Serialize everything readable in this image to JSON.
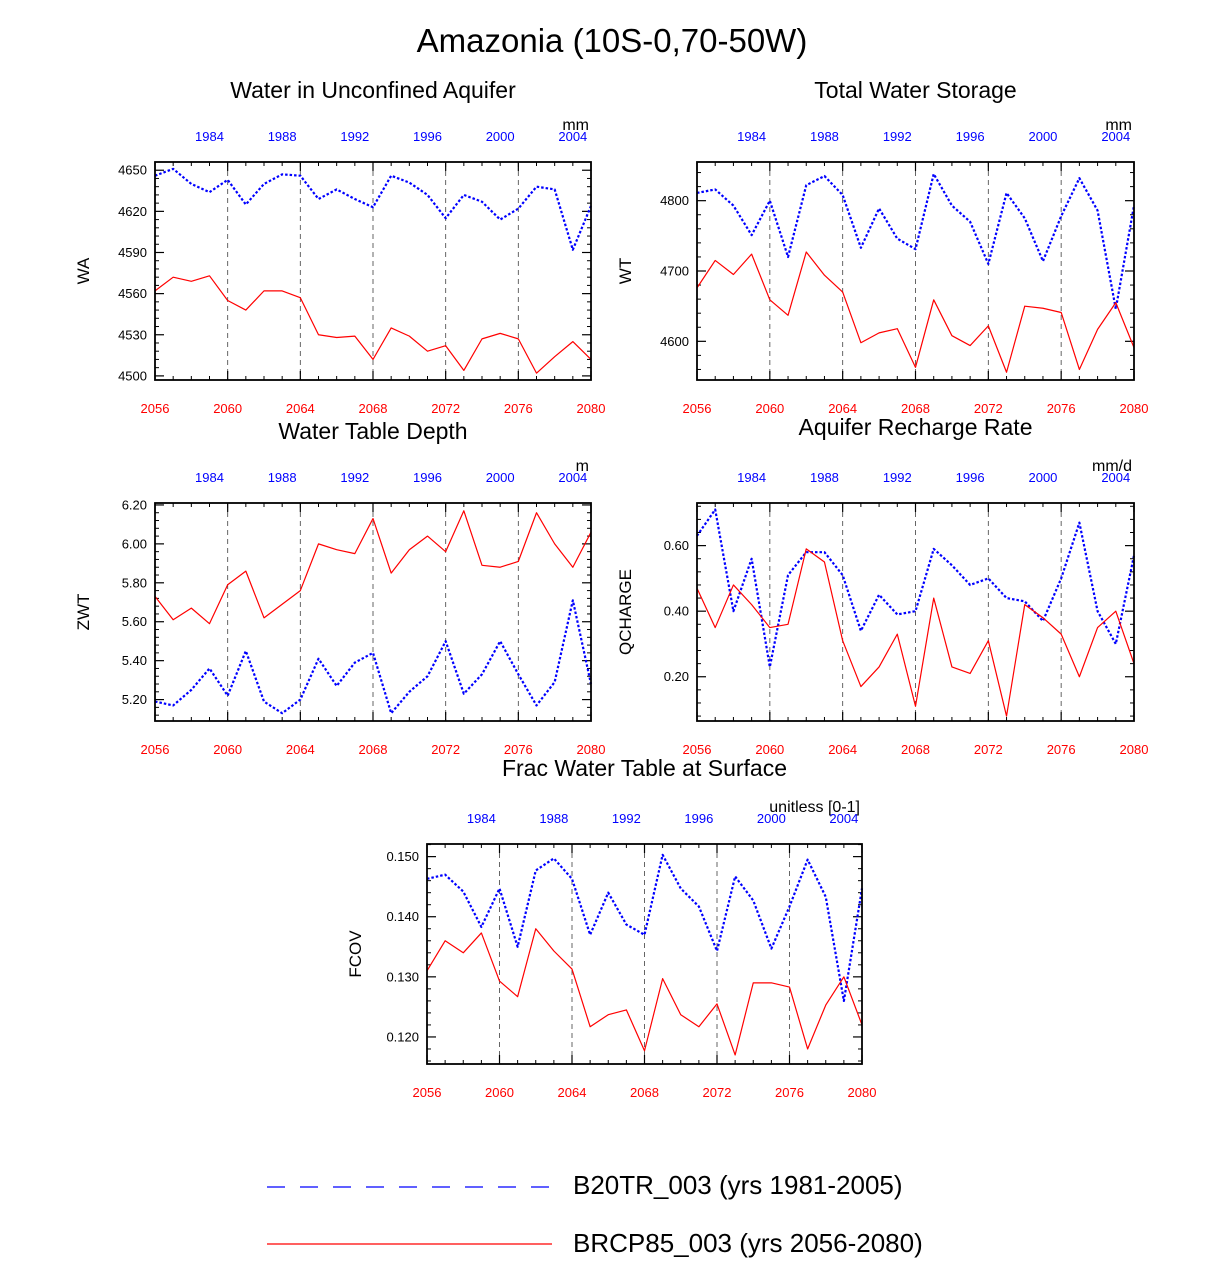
{
  "figure_title": "Amazonia (10S-0,70-50W)",
  "colors": {
    "blue": "#0000ff",
    "red": "#ff0000",
    "axis": "#000000",
    "grid": "#555555"
  },
  "legend": [
    {
      "label": "B20TR_003 (yrs 1981-2005)",
      "color": "#0000ff",
      "style": "dashed"
    },
    {
      "label": "BRCP85_003 (yrs 2056-2080)",
      "color": "#ff0000",
      "style": "solid"
    }
  ],
  "chart_data": [
    {
      "type": "line",
      "title": "Water in Unconfined Aquifer",
      "ylabel": "WA",
      "units": "mm",
      "ylim": [
        4497,
        4656
      ],
      "yticks": [
        4500,
        4530,
        4560,
        4590,
        4620,
        4650
      ],
      "ytick_labels": [
        "4500",
        "4530",
        "4560",
        "4590",
        "4620",
        "4650"
      ],
      "x_bottom": {
        "range": [
          2056,
          2080
        ],
        "ticks": [
          2056,
          2060,
          2064,
          2068,
          2072,
          2076,
          2080
        ]
      },
      "x_top": {
        "ticks": [
          1984,
          1988,
          1992,
          1996,
          2000,
          2004
        ]
      },
      "vlines": [
        2060,
        2064,
        2068,
        2072,
        2076
      ],
      "series": [
        {
          "name": "B20TR_003",
          "color": "#0000ff",
          "dash": true,
          "values": [
            4646,
            4651,
            4640,
            4634,
            4643,
            4625,
            4640,
            4647,
            4646,
            4629,
            4636,
            4629,
            4623,
            4646,
            4641,
            4632,
            4615,
            4632,
            4627,
            4614,
            4622,
            4638,
            4636,
            4592,
            4624
          ]
        },
        {
          "name": "BRCP85_003",
          "color": "#ff0000",
          "dash": false,
          "values": [
            4562,
            4572,
            4569,
            4573,
            4555,
            4548,
            4562,
            4562,
            4557,
            4530,
            4528,
            4529,
            4512,
            4535,
            4529,
            4518,
            4522,
            4504,
            4527,
            4531,
            4527,
            4502,
            4514,
            4525,
            4512
          ]
        }
      ]
    },
    {
      "type": "line",
      "title": "Total Water Storage",
      "ylabel": "WT",
      "units": "mm",
      "ylim": [
        4545,
        4855
      ],
      "yticks": [
        4600,
        4700,
        4800
      ],
      "ytick_labels": [
        "4600",
        "4700",
        "4800"
      ],
      "x_bottom": {
        "range": [
          2056,
          2080
        ],
        "ticks": [
          2056,
          2060,
          2064,
          2068,
          2072,
          2076,
          2080
        ]
      },
      "x_top": {
        "ticks": [
          1984,
          1988,
          1992,
          1996,
          2000,
          2004
        ]
      },
      "vlines": [
        2060,
        2064,
        2068,
        2072,
        2076
      ],
      "series": [
        {
          "name": "B20TR_003",
          "color": "#0000ff",
          "dash": true,
          "values": [
            4811,
            4816,
            4793,
            4751,
            4800,
            4720,
            4822,
            4835,
            4808,
            4733,
            4789,
            4746,
            4731,
            4838,
            4793,
            4770,
            4710,
            4811,
            4775,
            4714,
            4778,
            4832,
            4786,
            4646,
            4793
          ]
        },
        {
          "name": "BRCP85_003",
          "color": "#ff0000",
          "dash": false,
          "values": [
            4676,
            4715,
            4695,
            4724,
            4659,
            4637,
            4727,
            4694,
            4670,
            4598,
            4612,
            4618,
            4563,
            4659,
            4608,
            4594,
            4622,
            4556,
            4650,
            4647,
            4641,
            4560,
            4617,
            4655,
            4591
          ]
        }
      ]
    },
    {
      "type": "line",
      "title": "Water Table Depth",
      "ylabel": "ZWT",
      "units": "m",
      "ylim": [
        5.09,
        6.21
      ],
      "yticks": [
        5.2,
        5.4,
        5.6,
        5.8,
        6.0,
        6.2
      ],
      "ytick_labels": [
        "5.20",
        "5.40",
        "5.60",
        "5.80",
        "6.00",
        "6.20"
      ],
      "x_bottom": {
        "range": [
          2056,
          2080
        ],
        "ticks": [
          2056,
          2060,
          2064,
          2068,
          2072,
          2076,
          2080
        ]
      },
      "x_top": {
        "ticks": [
          1984,
          1988,
          1992,
          1996,
          2000,
          2004
        ]
      },
      "vlines": [
        2060,
        2064,
        2068,
        2072,
        2076
      ],
      "series": [
        {
          "name": "B20TR_003",
          "color": "#0000ff",
          "dash": true,
          "values": [
            5.19,
            5.17,
            5.25,
            5.36,
            5.22,
            5.45,
            5.19,
            5.13,
            5.2,
            5.41,
            5.27,
            5.39,
            5.44,
            5.13,
            5.24,
            5.32,
            5.5,
            5.23,
            5.33,
            5.5,
            5.33,
            5.17,
            5.29,
            5.71,
            5.28
          ]
        },
        {
          "name": "BRCP85_003",
          "color": "#ff0000",
          "dash": false,
          "values": [
            5.73,
            5.61,
            5.67,
            5.59,
            5.79,
            5.86,
            5.62,
            5.69,
            5.76,
            6.0,
            5.97,
            5.95,
            6.13,
            5.85,
            5.97,
            6.04,
            5.96,
            6.17,
            5.89,
            5.88,
            5.91,
            6.16,
            6.0,
            5.88,
            6.06
          ]
        }
      ]
    },
    {
      "type": "line",
      "title": "Aquifer Recharge Rate",
      "ylabel": "QCHARGE",
      "units": "mm/d",
      "ylim": [
        0.065,
        0.73
      ],
      "yticks": [
        0.2,
        0.4,
        0.6
      ],
      "ytick_labels": [
        "0.20",
        "0.40",
        "0.60"
      ],
      "x_bottom": {
        "range": [
          2056,
          2080
        ],
        "ticks": [
          2056,
          2060,
          2064,
          2068,
          2072,
          2076,
          2080
        ]
      },
      "x_top": {
        "ticks": [
          1984,
          1988,
          1992,
          1996,
          2000,
          2004
        ]
      },
      "vlines": [
        2060,
        2064,
        2068,
        2072,
        2076
      ],
      "series": [
        {
          "name": "B20TR_003",
          "color": "#0000ff",
          "dash": true,
          "values": [
            0.63,
            0.71,
            0.4,
            0.56,
            0.23,
            0.51,
            0.58,
            0.58,
            0.51,
            0.34,
            0.45,
            0.39,
            0.4,
            0.59,
            0.54,
            0.48,
            0.5,
            0.44,
            0.43,
            0.37,
            0.5,
            0.67,
            0.4,
            0.3,
            0.57
          ]
        },
        {
          "name": "BRCP85_003",
          "color": "#ff0000",
          "dash": false,
          "values": [
            0.47,
            0.35,
            0.48,
            0.42,
            0.35,
            0.36,
            0.59,
            0.55,
            0.31,
            0.17,
            0.23,
            0.33,
            0.11,
            0.44,
            0.23,
            0.21,
            0.31,
            0.08,
            0.42,
            0.38,
            0.33,
            0.2,
            0.35,
            0.4,
            0.24
          ]
        }
      ]
    },
    {
      "type": "line",
      "title": "Frac Water Table at Surface",
      "ylabel": "FCOV",
      "units": "unitless [0-1]",
      "ylim": [
        0.1155,
        0.1521
      ],
      "yticks": [
        0.12,
        0.13,
        0.14,
        0.15
      ],
      "ytick_labels": [
        "0.120",
        "0.130",
        "0.140",
        "0.150"
      ],
      "x_bottom": {
        "range": [
          2056,
          2080
        ],
        "ticks": [
          2056,
          2060,
          2064,
          2068,
          2072,
          2076,
          2080
        ]
      },
      "x_top": {
        "ticks": [
          1984,
          1988,
          1992,
          1996,
          2000,
          2004
        ]
      },
      "vlines": [
        2060,
        2064,
        2068,
        2072,
        2076
      ],
      "series": [
        {
          "name": "B20TR_003",
          "color": "#0000ff",
          "dash": true,
          "values": [
            0.1463,
            0.147,
            0.1442,
            0.1383,
            0.1447,
            0.135,
            0.1477,
            0.1497,
            0.1463,
            0.137,
            0.144,
            0.1387,
            0.137,
            0.1503,
            0.1447,
            0.1417,
            0.1343,
            0.1467,
            0.1427,
            0.1347,
            0.1417,
            0.1495,
            0.1433,
            0.126,
            0.1447
          ]
        },
        {
          "name": "BRCP85_003",
          "color": "#ff0000",
          "dash": false,
          "values": [
            0.131,
            0.136,
            0.134,
            0.1373,
            0.1293,
            0.1267,
            0.138,
            0.1343,
            0.1313,
            0.1217,
            0.1237,
            0.1245,
            0.1177,
            0.1297,
            0.1237,
            0.1217,
            0.1255,
            0.117,
            0.129,
            0.129,
            0.1283,
            0.118,
            0.1253,
            0.13,
            0.122
          ]
        }
      ]
    }
  ]
}
